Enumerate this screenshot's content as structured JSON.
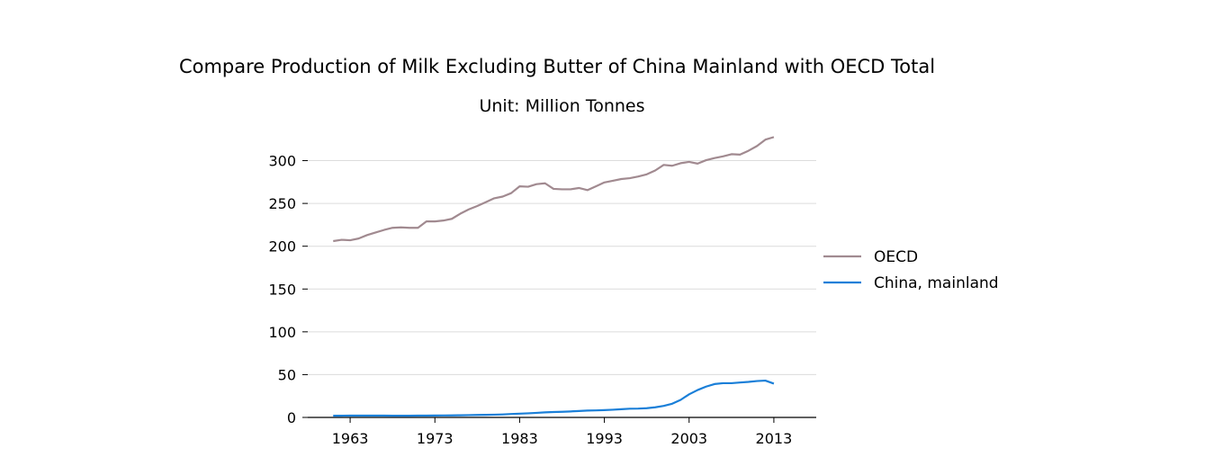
{
  "chart_data": {
    "type": "line",
    "title": "Compare Production of Milk Excluding Butter of China Mainland with OECD Total",
    "subtitle": "Unit: Million Tonnes",
    "xlabel": "",
    "ylabel": "",
    "xlim": [
      1958,
      2018
    ],
    "ylim": [
      0,
      330
    ],
    "x_ticks": [
      1963,
      1973,
      1983,
      1993,
      2003,
      2013
    ],
    "y_ticks": [
      0,
      50,
      100,
      150,
      200,
      250,
      300
    ],
    "grid": "horizontal",
    "legend_position": "right",
    "x": [
      1961,
      1962,
      1963,
      1964,
      1965,
      1966,
      1967,
      1968,
      1969,
      1970,
      1971,
      1972,
      1973,
      1974,
      1975,
      1976,
      1977,
      1978,
      1979,
      1980,
      1981,
      1982,
      1983,
      1984,
      1985,
      1986,
      1987,
      1988,
      1989,
      1990,
      1991,
      1992,
      1993,
      1994,
      1995,
      1996,
      1997,
      1998,
      1999,
      2000,
      2001,
      2002,
      2003,
      2004,
      2005,
      2006,
      2007,
      2008,
      2009,
      2010,
      2011,
      2012,
      2013
    ],
    "series": [
      {
        "name": "OECD",
        "color": "#a18a90",
        "values": [
          206,
          207.5,
          207,
          209,
          213,
          216,
          219,
          221.5,
          222,
          221.5,
          221.5,
          229,
          229,
          230,
          232,
          238,
          243,
          247,
          251.5,
          256,
          258,
          262,
          270,
          269.5,
          272.5,
          273.5,
          267,
          266.5,
          266.5,
          268,
          265.5,
          270,
          274.5,
          276.5,
          278.5,
          279.5,
          281.5,
          284,
          288.5,
          295,
          294,
          297,
          298.5,
          296.5,
          300.5,
          303,
          305,
          307.5,
          307,
          311.5,
          317,
          324.5,
          327.5
        ]
      },
      {
        "name": "China, mainland",
        "color": "#1a7fd8",
        "values": [
          2,
          2,
          2.1,
          2.1,
          2.1,
          2.1,
          2.1,
          2,
          2,
          2,
          2.1,
          2.1,
          2.2,
          2.3,
          2.4,
          2.5,
          2.7,
          2.9,
          3,
          3.2,
          3.5,
          4,
          4.4,
          4.8,
          5.3,
          5.9,
          6.3,
          6.6,
          7,
          7.5,
          8,
          8.2,
          8.5,
          9,
          9.6,
          10.2,
          10.3,
          10.8,
          11.8,
          13.5,
          16,
          20.5,
          27,
          32,
          36,
          39,
          40,
          40,
          40.8,
          41.5,
          42.5,
          43,
          39.5
        ]
      }
    ]
  }
}
